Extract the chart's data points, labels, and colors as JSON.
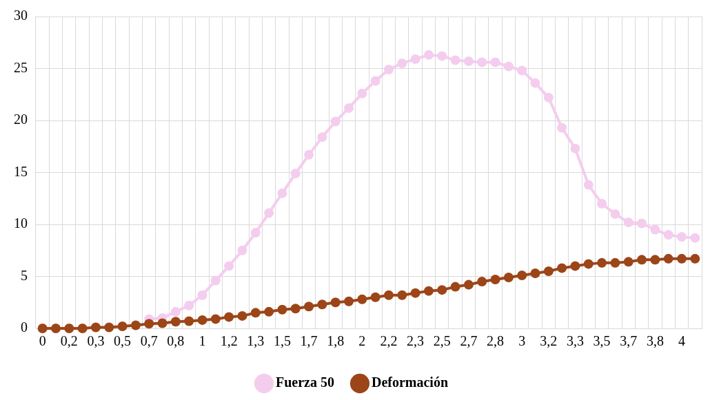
{
  "chart_data": {
    "type": "line",
    "categories": [
      "0",
      null,
      "0,2",
      null,
      "0,3",
      null,
      "0,5",
      null,
      "0,7",
      null,
      "0,8",
      null,
      "1",
      null,
      "1,2",
      null,
      "1,3",
      null,
      "1,5",
      null,
      "1,7",
      null,
      "1,8",
      null,
      "2",
      null,
      "2,2",
      null,
      "2,3",
      null,
      "2,5",
      null,
      "2,7",
      null,
      "2,8",
      null,
      "3",
      null,
      "3,2",
      null,
      "3,3",
      null,
      "3,5",
      null,
      "3,7",
      null,
      "3,8",
      null,
      "4",
      null
    ],
    "series": [
      {
        "name": "Fuerza 50",
        "color": "#f4cdee",
        "values": [
          null,
          null,
          null,
          null,
          null,
          null,
          null,
          null,
          0.9,
          1.0,
          1.6,
          2.2,
          3.2,
          4.6,
          6.0,
          7.5,
          9.2,
          11.1,
          13.0,
          14.9,
          16.7,
          18.4,
          19.9,
          21.2,
          22.6,
          23.8,
          24.9,
          25.5,
          25.9,
          26.3,
          26.2,
          25.8,
          25.7,
          25.6,
          25.6,
          25.2,
          24.8,
          23.6,
          22.2,
          19.3,
          17.3,
          13.8,
          12.0,
          11.0,
          10.2,
          10.1,
          9.5,
          9.0,
          8.8,
          8.7
        ]
      },
      {
        "name": "Deformación",
        "color": "#9c4518",
        "values": [
          0,
          0,
          0,
          0,
          0.1,
          0.1,
          0.2,
          0.3,
          0.45,
          0.5,
          0.65,
          0.7,
          0.8,
          0.9,
          1.1,
          1.2,
          1.5,
          1.6,
          1.8,
          1.9,
          2.1,
          2.3,
          2.5,
          2.6,
          2.8,
          3.0,
          3.2,
          3.2,
          3.4,
          3.6,
          3.7,
          4.0,
          4.2,
          4.5,
          4.7,
          4.9,
          5.1,
          5.3,
          5.5,
          5.8,
          6.0,
          6.2,
          6.3,
          6.3,
          6.4,
          6.6,
          6.6,
          6.7,
          6.7,
          6.7
        ]
      }
    ],
    "ylim": [
      0,
      30
    ],
    "yticks": [
      0,
      5,
      10,
      15,
      20,
      25,
      30
    ],
    "grid": true,
    "legend": "bottom",
    "marker": "circle",
    "line_style": "solid"
  }
}
